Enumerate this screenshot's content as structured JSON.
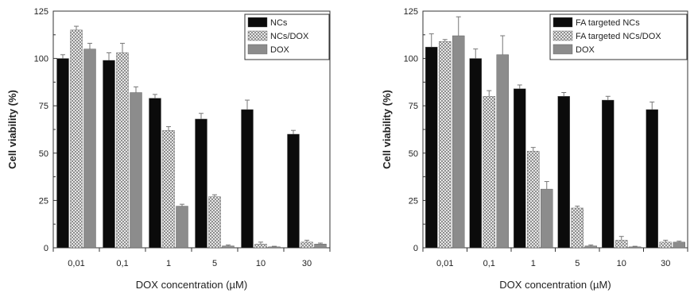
{
  "chart_data": [
    {
      "type": "bar",
      "xlabel": "DOX concentration (µM)",
      "ylabel": "Cell viability (%)",
      "ylim": [
        0,
        125
      ],
      "yticks": [
        "0",
        "25",
        "50",
        "75",
        "100",
        "125"
      ],
      "categories": [
        "0,01",
        "0,1",
        "1",
        "5",
        "10",
        "30"
      ],
      "legend_position": "top-right",
      "series": [
        {
          "name": "NCs",
          "color": "#0b0b0b",
          "pattern": "solid",
          "values": [
            100,
            99,
            79,
            68,
            73,
            60
          ],
          "errors": [
            2,
            4,
            2,
            3,
            5,
            2
          ]
        },
        {
          "name": "NCs/DOX",
          "color": "#bdbdbd",
          "pattern": "checker",
          "values": [
            115,
            103,
            62,
            27,
            2,
            3
          ],
          "errors": [
            2,
            5,
            2,
            1,
            1,
            1
          ]
        },
        {
          "name": "DOX",
          "color": "#8c8c8c",
          "pattern": "solid",
          "values": [
            105,
            82,
            22,
            1,
            0.5,
            2
          ],
          "errors": [
            3,
            3,
            1,
            0.5,
            0.3,
            0.5
          ]
        }
      ]
    },
    {
      "type": "bar",
      "xlabel": "DOX concentration (µM)",
      "ylabel": "Cell viability (%)",
      "ylim": [
        0,
        125
      ],
      "yticks": [
        "0",
        "25",
        "50",
        "75",
        "100",
        "125"
      ],
      "categories": [
        "0,01",
        "0,1",
        "1",
        "5",
        "10",
        "30"
      ],
      "legend_position": "top-right",
      "series": [
        {
          "name": "FA targeted NCs",
          "color": "#0b0b0b",
          "pattern": "solid",
          "values": [
            106,
            100,
            84,
            80,
            78,
            73
          ],
          "errors": [
            7,
            5,
            2,
            2,
            2,
            4
          ]
        },
        {
          "name": "FA targeted NCs/DOX",
          "color": "#bdbdbd",
          "pattern": "checker",
          "values": [
            109,
            80,
            51,
            21,
            4,
            3
          ],
          "errors": [
            1,
            3,
            2,
            1,
            2,
            1
          ]
        },
        {
          "name": "DOX",
          "color": "#8c8c8c",
          "pattern": "solid",
          "values": [
            112,
            102,
            31,
            1,
            0.5,
            3
          ],
          "errors": [
            10,
            10,
            4,
            0.5,
            0.3,
            0.5
          ]
        }
      ]
    }
  ]
}
